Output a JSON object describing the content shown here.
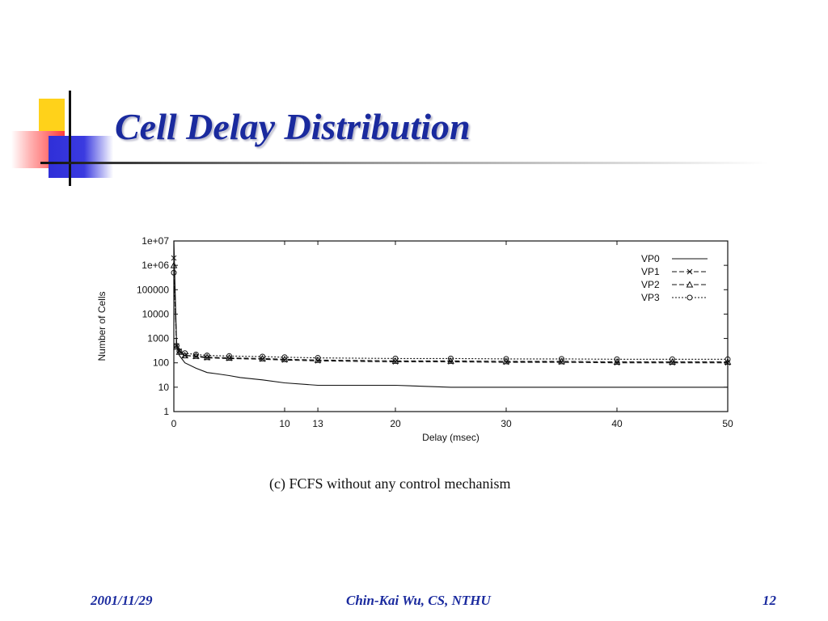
{
  "slide": {
    "title": "Cell Delay Distribution",
    "caption": "(c) FCFS without any control mechanism",
    "footer": {
      "date": "2001/11/29",
      "author": "Chin-Kai Wu, CS, NTHU",
      "page": "12"
    },
    "colors": {
      "title": "#1a2a9e",
      "deco_yellow": "#ffd21a",
      "deco_red": "#ff3b3b",
      "deco_blue": "#2f2fd8"
    }
  },
  "chart_data": {
    "type": "line",
    "title": "",
    "xlabel": "Delay (msec)",
    "ylabel": "Number of Cells",
    "xlim": [
      0,
      50
    ],
    "ylim": [
      1,
      10000000
    ],
    "y_scale": "log",
    "x_ticks": [
      0,
      10,
      13,
      20,
      30,
      40,
      50
    ],
    "y_ticks": [
      1,
      10,
      100,
      1000,
      10000,
      100000,
      1000000,
      10000000
    ],
    "y_tick_labels": [
      "1",
      "10",
      "100",
      "1000",
      "10000",
      "100000",
      "1e+06",
      "1e+07"
    ],
    "grid": false,
    "legend_position": "top-right",
    "series": [
      {
        "name": "VP0",
        "marker": "none",
        "line": "solid",
        "x": [
          0,
          0.25,
          0.5,
          1,
          2,
          3,
          4,
          5,
          6,
          8,
          10,
          13,
          15,
          20,
          25,
          30,
          35,
          40,
          45,
          50
        ],
        "y": [
          10000000,
          600,
          200,
          100,
          60,
          40,
          35,
          30,
          25,
          20,
          15,
          12,
          12,
          12,
          10,
          10,
          10,
          10,
          10,
          10
        ]
      },
      {
        "name": "VP1",
        "marker": "x",
        "line": "dashed",
        "x": [
          0,
          0.25,
          0.5,
          1,
          2,
          3,
          5,
          8,
          10,
          13,
          20,
          25,
          30,
          35,
          40,
          45,
          50
        ],
        "y": [
          2000000,
          500,
          300,
          200,
          180,
          160,
          150,
          140,
          130,
          120,
          110,
          110,
          105,
          105,
          100,
          100,
          100
        ]
      },
      {
        "name": "VP2",
        "marker": "triangle",
        "line": "dashed",
        "x": [
          0,
          0.25,
          0.5,
          1,
          2,
          3,
          5,
          8,
          10,
          13,
          20,
          25,
          30,
          35,
          40,
          45,
          50
        ],
        "y": [
          1000000,
          450,
          280,
          200,
          190,
          170,
          160,
          150,
          140,
          130,
          120,
          120,
          115,
          115,
          110,
          110,
          110
        ]
      },
      {
        "name": "VP3",
        "marker": "circle",
        "line": "dotted",
        "x": [
          0,
          0.25,
          0.5,
          1,
          2,
          3,
          5,
          8,
          10,
          13,
          20,
          25,
          30,
          35,
          40,
          45,
          50
        ],
        "y": [
          500000,
          500,
          300,
          250,
          220,
          200,
          190,
          180,
          170,
          160,
          150,
          150,
          145,
          145,
          140,
          140,
          140
        ]
      }
    ]
  }
}
